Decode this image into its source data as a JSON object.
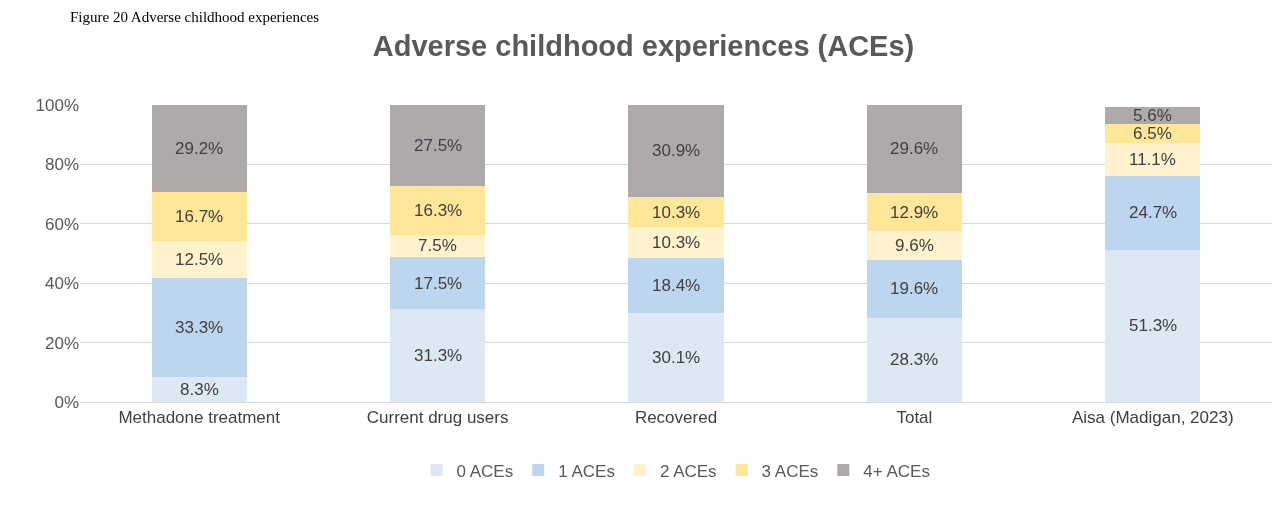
{
  "chart_data": {
    "type": "bar",
    "stacked": true,
    "title": "Adverse childhood experiences (ACEs)",
    "annotations": [
      "Figure 20 Adverse childhood experiences"
    ],
    "categories": [
      "Methadone treatment",
      "Current drug users",
      "Recovered",
      "Total",
      "Aisa (Madigan, 2023)"
    ],
    "series": [
      {
        "name": "0 ACEs",
        "color": "#dde8f5",
        "values": [
          8.3,
          31.3,
          30.1,
          28.3,
          51.3
        ],
        "value_labels": [
          "8.3%",
          "31.3%",
          "30.1%",
          "28.3%",
          "51.3%"
        ]
      },
      {
        "name": "1 ACEs",
        "color": "#bdd5ee",
        "values": [
          33.3,
          17.5,
          18.4,
          19.6,
          24.7
        ],
        "value_labels": [
          "33.3%",
          "17.5%",
          "18.4%",
          "19.6%",
          "24.7%"
        ]
      },
      {
        "name": "2 ACEs",
        "color": "#fff2cc",
        "values": [
          12.5,
          7.5,
          10.3,
          9.6,
          11.1
        ],
        "value_labels": [
          "12.5%",
          "7.5%",
          "10.3%",
          "9.6%",
          "11.1%"
        ]
      },
      {
        "name": "3 ACEs",
        "color": "#ffe699",
        "values": [
          16.7,
          16.3,
          10.3,
          12.9,
          6.5
        ],
        "value_labels": [
          "16.7%",
          "16.3%",
          "10.3%",
          "12.9%",
          "6.5%"
        ]
      },
      {
        "name": "4+ ACEs",
        "color": "#aeaaaa",
        "values": [
          29.2,
          27.5,
          30.9,
          29.6,
          5.6
        ],
        "value_labels": [
          "29.2%",
          "27.5%",
          "30.9%",
          "29.6%",
          "5.6%"
        ]
      }
    ],
    "ylim": [
      0,
      100
    ],
    "yticks": [
      {
        "value": 0,
        "label": "0%"
      },
      {
        "value": 20,
        "label": "20%"
      },
      {
        "value": 40,
        "label": "40%"
      },
      {
        "value": 60,
        "label": "60%"
      },
      {
        "value": 80,
        "label": "80%"
      },
      {
        "value": 100,
        "label": "100%"
      }
    ],
    "grid": "y",
    "legend": "bottom"
  }
}
